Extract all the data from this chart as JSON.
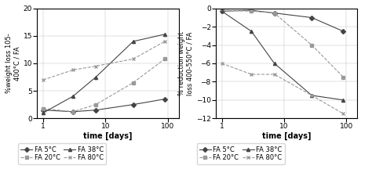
{
  "left_chart": {
    "ylabel": "%weight loss 105-\n400°C / FA",
    "xlabel": "time [days]",
    "ylim": [
      0,
      20
    ],
    "yticks": [
      0,
      5,
      10,
      15,
      20
    ],
    "series": {
      "FA 5°C": {
        "x": [
          1,
          3,
          7,
          28,
          90
        ],
        "y": [
          1.5,
          1.2,
          1.5,
          2.5,
          3.5
        ],
        "color": "#444444",
        "marker": "D",
        "ls": "-"
      },
      "FA 20°C": {
        "x": [
          1,
          3,
          7,
          28,
          90
        ],
        "y": [
          1.8,
          1.2,
          2.5,
          6.5,
          10.8
        ],
        "color": "#999999",
        "marker": "s",
        "ls": "--"
      },
      "FA 38°C": {
        "x": [
          1,
          3,
          7,
          28,
          90
        ],
        "y": [
          1.0,
          4.0,
          7.5,
          14.0,
          15.3
        ],
        "color": "#444444",
        "marker": "^",
        "ls": "-"
      },
      "FA 80°C": {
        "x": [
          1,
          3,
          7,
          28,
          90
        ],
        "y": [
          7.0,
          8.8,
          9.5,
          10.8,
          14.0
        ],
        "color": "#999999",
        "marker": "x",
        "ls": "--"
      }
    }
  },
  "right_chart": {
    "ylabel": "% reduction weight\nloss 400-550°C / FA",
    "xlabel": "time [days]",
    "ylim": [
      -12,
      0
    ],
    "yticks": [
      0,
      -2,
      -4,
      -6,
      -8,
      -10,
      -12
    ],
    "series": {
      "FA 5°C": {
        "x": [
          1,
          3,
          7,
          28,
          90
        ],
        "y": [
          -0.3,
          -0.2,
          -0.5,
          -1.0,
          -2.5
        ],
        "color": "#444444",
        "marker": "D",
        "ls": "-"
      },
      "FA 20°C": {
        "x": [
          1,
          3,
          7,
          28,
          90
        ],
        "y": [
          -0.2,
          -0.3,
          -0.5,
          -4.0,
          -7.5
        ],
        "color": "#999999",
        "marker": "s",
        "ls": "--"
      },
      "FA 38°C": {
        "x": [
          1,
          3,
          7,
          28,
          90
        ],
        "y": [
          -0.3,
          -2.5,
          -6.0,
          -9.5,
          -10.0
        ],
        "color": "#444444",
        "marker": "^",
        "ls": "-"
      },
      "FA 80°C": {
        "x": [
          1,
          3,
          7,
          28,
          90
        ],
        "y": [
          -6.0,
          -7.2,
          -7.2,
          -9.5,
          -11.5
        ],
        "color": "#999999",
        "marker": "x",
        "ls": "--"
      }
    }
  },
  "background_color": "#ffffff",
  "font_size": 6.5
}
